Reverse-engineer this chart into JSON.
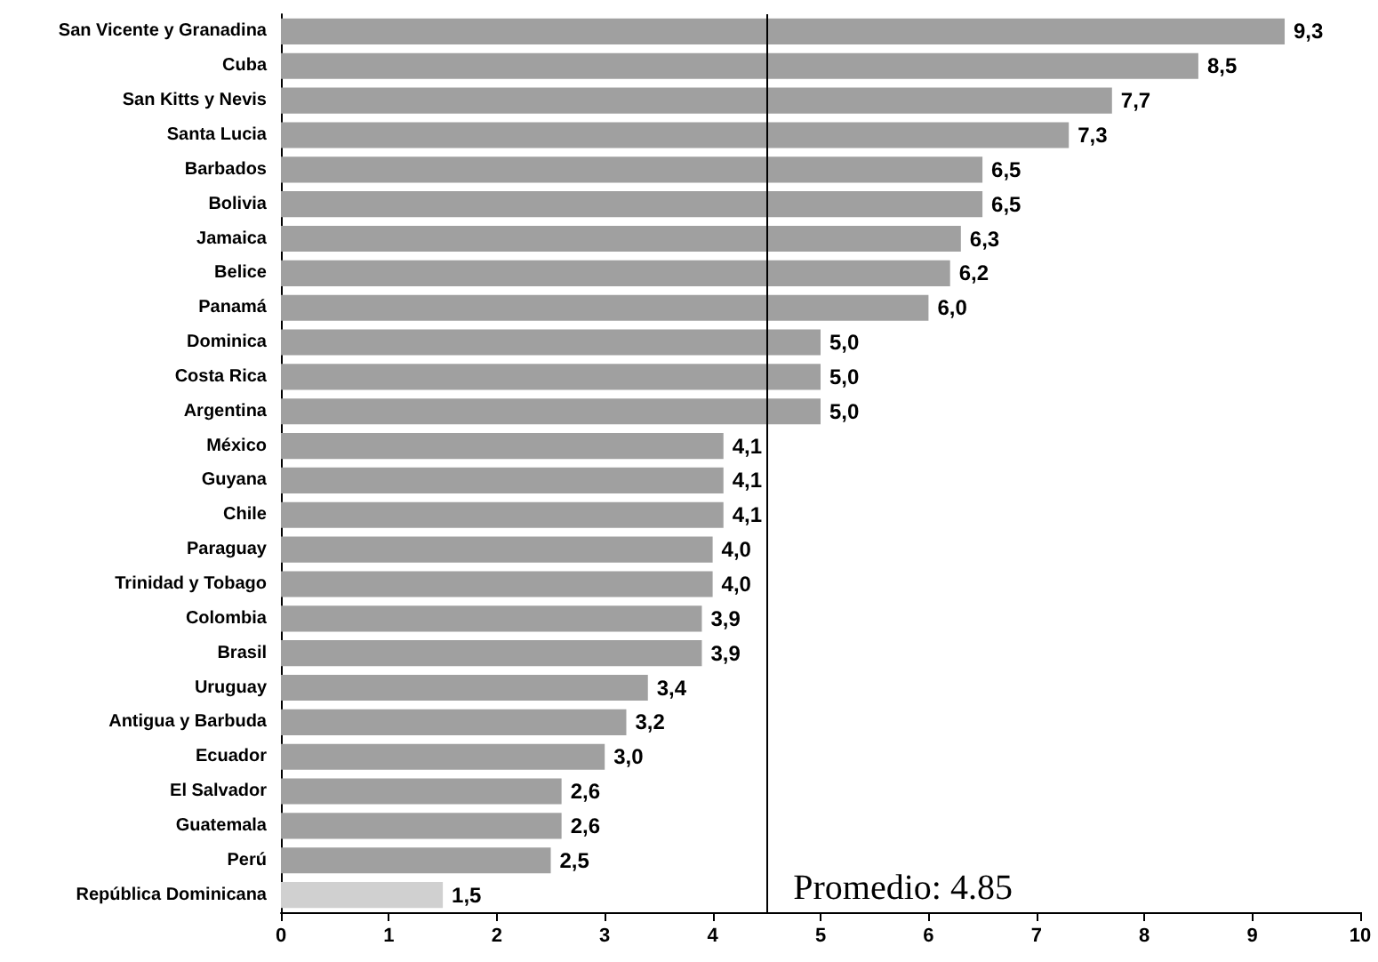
{
  "chart_data": {
    "type": "bar",
    "orientation": "horizontal",
    "categories": [
      "San Vicente y Granadina",
      "Cuba",
      "San Kitts y Nevis",
      "Santa Lucia",
      "Barbados",
      "Bolivia",
      "Jamaica",
      "Belice",
      "Panamá",
      "Dominica",
      "Costa Rica",
      "Argentina",
      "México",
      "Guyana",
      "Chile",
      "Paraguay",
      "Trinidad y Tobago",
      "Colombia",
      "Brasil",
      "Uruguay",
      "Antigua y Barbuda",
      "Ecuador",
      "El Salvador",
      "Guatemala",
      "Perú",
      "República Dominicana"
    ],
    "values": [
      9.3,
      8.5,
      7.7,
      7.3,
      6.5,
      6.5,
      6.3,
      6.2,
      6.0,
      5.0,
      5.0,
      5.0,
      4.1,
      4.1,
      4.1,
      4.0,
      4.0,
      3.9,
      3.9,
      3.4,
      3.2,
      3.0,
      2.6,
      2.6,
      2.5,
      1.5
    ],
    "value_labels": [
      "9,3",
      "8,5",
      "7,7",
      "7,3",
      "6,5",
      "6,5",
      "6,3",
      "6,2",
      "6,0",
      "5,0",
      "5,0",
      "5,0",
      "4,1",
      "4,1",
      "4,1",
      "4,0",
      "4,0",
      "3,9",
      "3,9",
      "3,4",
      "3,2",
      "3,0",
      "2,6",
      "2,6",
      "2,5",
      "1,5"
    ],
    "colors": [
      "#a0a0a0",
      "#a0a0a0",
      "#a0a0a0",
      "#a0a0a0",
      "#a0a0a0",
      "#a0a0a0",
      "#a0a0a0",
      "#a0a0a0",
      "#a0a0a0",
      "#a0a0a0",
      "#a0a0a0",
      "#a0a0a0",
      "#a0a0a0",
      "#a0a0a0",
      "#a0a0a0",
      "#a0a0a0",
      "#a0a0a0",
      "#a0a0a0",
      "#a0a0a0",
      "#a0a0a0",
      "#a0a0a0",
      "#a0a0a0",
      "#a0a0a0",
      "#a0a0a0",
      "#a0a0a0",
      "#d0d0d0"
    ],
    "xlim": [
      0,
      10
    ],
    "xticks": [
      0,
      1,
      2,
      3,
      4,
      5,
      6,
      7,
      8,
      9,
      10
    ],
    "ref_lines": [
      {
        "axis": "x",
        "value": 4.5,
        "color": "#000000"
      }
    ],
    "annotations": [
      "Promedio: 4.85"
    ],
    "grid": false
  }
}
